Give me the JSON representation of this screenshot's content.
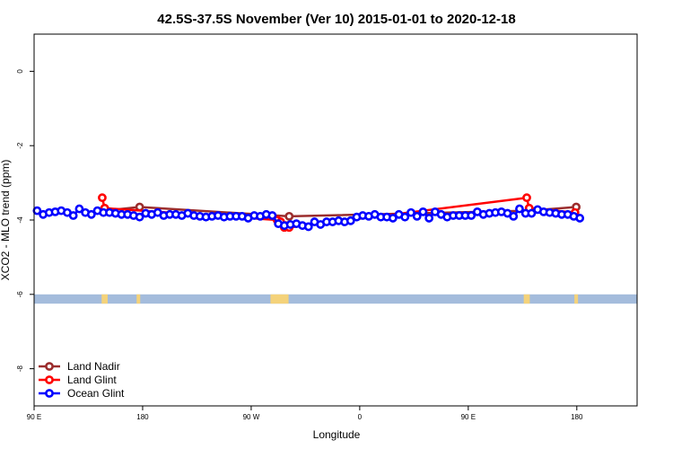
{
  "chart_data": {
    "type": "line",
    "title": "42.5S-37.5S November (Ver 10)   2015-01-01 to 2020-12-18",
    "xlabel": "Longitude",
    "ylabel": "XCO2 - MLO trend (ppm)",
    "xlim": [
      90,
      590
    ],
    "ylim": [
      -9,
      1
    ],
    "x_ticks": [
      {
        "value": 90,
        "label": "90 E"
      },
      {
        "value": 180,
        "label": "180"
      },
      {
        "value": 270,
        "label": "90 W"
      },
      {
        "value": 360,
        "label": "0"
      },
      {
        "value": 450,
        "label": "90 E"
      },
      {
        "value": 540,
        "label": "180"
      }
    ],
    "y_ticks": [
      {
        "value": 0,
        "label": "0"
      },
      {
        "value": -2,
        "label": "-2"
      },
      {
        "value": -4,
        "label": "-4"
      },
      {
        "value": -6,
        "label": "-6"
      },
      {
        "value": -8,
        "label": "-8"
      }
    ],
    "grid": false,
    "legend_position": "bottom-left",
    "colors": {
      "land_nadir": "#9b2d2d",
      "land_glint": "#ff0000",
      "ocean_glint": "#0000ff",
      "ocean_band": "#a4bcdc",
      "land_band": "#f4d27a"
    },
    "series": [
      {
        "name": "Land Nadir",
        "color": "#9b2d2d",
        "x": [
          148.5,
          177.5,
          301.5,
          500.5,
          539.5
        ],
        "y": [
          -3.75,
          -3.65,
          -3.9,
          -3.75,
          -3.65
        ]
      },
      {
        "name": "Land Glint",
        "color": "#ff0000",
        "x": [
          146.5,
          148.5,
          291.5,
          294.5,
          297.5,
          298.5,
          301.5,
          498.5,
          500.5,
          538.5
        ],
        "y": [
          -3.4,
          -3.68,
          -4.0,
          -4.05,
          -4.2,
          -4.15,
          -4.2,
          -3.4,
          -3.68,
          -3.8
        ]
      },
      {
        "name": "Ocean Glint",
        "color": "#0000ff",
        "x": [
          92.5,
          97.5,
          102.5,
          107.5,
          112.5,
          117.5,
          122.5,
          127.5,
          132.5,
          137.5,
          142.5,
          147.5,
          152.5,
          157.5,
          162.5,
          167.5,
          172.5,
          177.5,
          182.5,
          187.5,
          192.5,
          197.5,
          202.5,
          207.5,
          212.5,
          217.5,
          222.5,
          227.5,
          232.5,
          237.5,
          242.5,
          247.5,
          252.5,
          257.5,
          262.5,
          267.5,
          272.5,
          277.5,
          282.5,
          287.5,
          292.5,
          297.5,
          302.5,
          307.5,
          312.5,
          317.5,
          322.5,
          327.5,
          332.5,
          337.5,
          342.5,
          347.5,
          352.5,
          357.5,
          362.5,
          367.5,
          372.5,
          377.5,
          382.5,
          387.5,
          392.5,
          397.5,
          402.5,
          407.5,
          412.5,
          417.5,
          422.5,
          427.5,
          432.5,
          437.5,
          442.5,
          447.5,
          452.5,
          457.5,
          462.5,
          467.5,
          472.5,
          477.5,
          482.5,
          487.5,
          492.5,
          497.5,
          502.5,
          507.5,
          512.5,
          517.5,
          522.5,
          527.5,
          532.5,
          537.5,
          542.5
        ],
        "y": [
          -3.75,
          -3.85,
          -3.8,
          -3.78,
          -3.75,
          -3.8,
          -3.88,
          -3.7,
          -3.8,
          -3.85,
          -3.75,
          -3.8,
          -3.8,
          -3.82,
          -3.85,
          -3.85,
          -3.88,
          -3.92,
          -3.82,
          -3.85,
          -3.8,
          -3.88,
          -3.85,
          -3.85,
          -3.88,
          -3.82,
          -3.88,
          -3.9,
          -3.92,
          -3.9,
          -3.88,
          -3.92,
          -3.9,
          -3.9,
          -3.9,
          -3.95,
          -3.88,
          -3.9,
          -3.85,
          -3.88,
          -4.1,
          -4.15,
          -4.12,
          -4.1,
          -4.15,
          -4.18,
          -4.05,
          -4.12,
          -4.05,
          -4.05,
          -4.02,
          -4.05,
          -4.02,
          -3.92,
          -3.88,
          -3.9,
          -3.85,
          -3.92,
          -3.92,
          -3.95,
          -3.85,
          -3.92,
          -3.8,
          -3.9,
          -3.78,
          -3.95,
          -3.78,
          -3.85,
          -3.92,
          -3.88,
          -3.88,
          -3.88,
          -3.88,
          -3.78,
          -3.85,
          -3.82,
          -3.8,
          -3.78,
          -3.82,
          -3.9,
          -3.7,
          -3.82,
          -3.82,
          -3.72,
          -3.78,
          -3.8,
          -3.82,
          -3.85,
          -3.85,
          -3.9,
          -3.95
        ]
      }
    ],
    "surface_bar": {
      "y_range": [
        -6.25,
        -6.0
      ],
      "land_x_ranges": [
        [
          146,
          151
        ],
        [
          175,
          178
        ],
        [
          286,
          301
        ],
        [
          496,
          501
        ],
        [
          538,
          541
        ]
      ]
    }
  }
}
